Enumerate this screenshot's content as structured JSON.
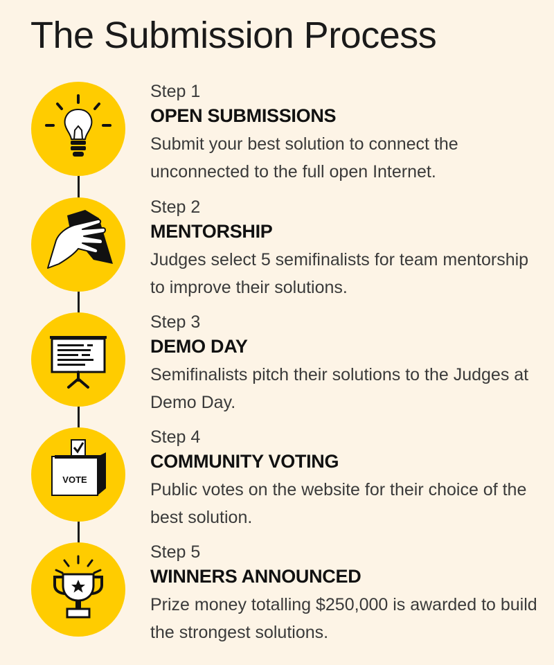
{
  "title": "The Submission Process",
  "colors": {
    "accent": "#ffcc00",
    "ink": "#1a1a1a",
    "background": "#fdf4e6"
  },
  "steps": [
    {
      "label": "Step 1",
      "heading": "OPEN SUBMISSIONS",
      "description": "Submit your best solution to connect the unconnected to the full open Internet.",
      "icon": "lightbulb-icon"
    },
    {
      "label": "Step 2",
      "heading": "MENTORSHIP",
      "description": "Judges select 5 semifinalists for team mentorship to improve their solutions.",
      "icon": "helping-hands-icon"
    },
    {
      "label": "Step 3",
      "heading": "DEMO DAY",
      "description": "Semifinalists pitch their solutions to the Judges at Demo Day.",
      "icon": "presentation-board-icon"
    },
    {
      "label": "Step 4",
      "heading": "COMMUNITY VOTING",
      "description": "Public votes on the website for their choice of the best solution.",
      "icon": "ballot-box-icon",
      "icon_text": "VOTE"
    },
    {
      "label": "Step 5",
      "heading": "WINNERS ANNOUNCED",
      "description": "Prize money totalling $250,000 is awarded to build the strongest solutions.",
      "icon": "trophy-icon"
    }
  ]
}
